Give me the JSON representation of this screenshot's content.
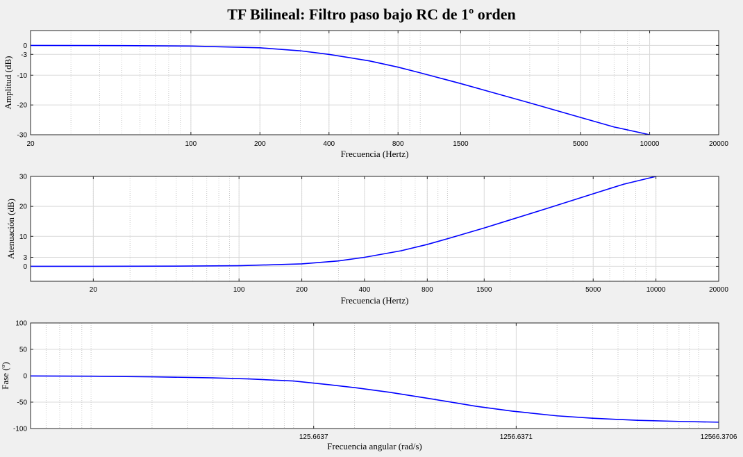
{
  "title": "TF Bilineal: Filtro paso bajo RC de 1º orden",
  "colors": {
    "line": "#0000ff",
    "grid": "#d9d9d9",
    "axes_bg": "#ffffff",
    "figure_bg": "#f0f0f0"
  },
  "chart_data": [
    {
      "type": "line",
      "xscale": "log",
      "xlabel": "Frecuencia (Hertz)",
      "ylabel": "Amplitud (dB)",
      "xlim": [
        20,
        20000
      ],
      "ylim": [
        -30,
        5
      ],
      "xticks": [
        20,
        100,
        200,
        400,
        800,
        1500,
        5000,
        10000,
        20000
      ],
      "xticklabels": [
        "20",
        "100",
        "200",
        "400",
        "800",
        "1500",
        "5000",
        "10000",
        "20000"
      ],
      "yticks": [
        -30,
        -20,
        -10,
        -3,
        0
      ],
      "yticklabels": [
        "-30",
        "-20",
        "-10",
        "-3",
        "0"
      ],
      "grid": true,
      "series": [
        {
          "x": [
            20,
            50,
            100,
            200,
            300,
            400,
            600,
            800,
            1000,
            1500,
            2000,
            3000,
            5000,
            7000,
            10000,
            10500
          ],
          "y": [
            0,
            -0.05,
            -0.2,
            -0.8,
            -1.8,
            -3,
            -5.2,
            -7.3,
            -9.2,
            -12.8,
            -15.5,
            -19.3,
            -24.2,
            -27.4,
            -30,
            -30.4
          ]
        }
      ]
    },
    {
      "type": "line",
      "xscale": "log",
      "xlabel": "Frecuencia (Hertz)",
      "ylabel": "Atenuación (dB)",
      "xlim": [
        10,
        20000
      ],
      "ylim": [
        -5,
        30
      ],
      "xticks": [
        20,
        100,
        200,
        400,
        800,
        1500,
        5000,
        10000,
        20000
      ],
      "xticklabels": [
        "20",
        "100",
        "200",
        "400",
        "800",
        "1500",
        "5000",
        "10000",
        "20000"
      ],
      "yticks": [
        0,
        3,
        10,
        20,
        30
      ],
      "yticklabels": [
        "0",
        "3",
        "10",
        "20",
        "30"
      ],
      "grid": true,
      "series": [
        {
          "x": [
            10,
            20,
            50,
            100,
            200,
            300,
            400,
            600,
            800,
            1000,
            1500,
            2000,
            3000,
            5000,
            7000,
            10000,
            10500
          ],
          "y": [
            0,
            0,
            0.05,
            0.2,
            0.8,
            1.8,
            3,
            5.2,
            7.3,
            9.2,
            12.8,
            15.5,
            19.3,
            24.2,
            27.4,
            30,
            30.4
          ]
        }
      ]
    },
    {
      "type": "line",
      "xscale": "log",
      "xlabel": "Frecuencia angular (rad/s)",
      "ylabel": "Fase (º)",
      "xlim": [
        5.0265,
        12566.3706
      ],
      "ylim": [
        -100,
        100
      ],
      "xticks": [
        125.6637,
        1256.6371,
        12566.3706
      ],
      "xticklabels": [
        "125.6637",
        "1256.6371",
        "12566.3706"
      ],
      "yticks": [
        -100,
        -50,
        0,
        50,
        100
      ],
      "yticklabels": [
        "-100",
        "-50",
        "0",
        "50",
        "100"
      ],
      "grid": true,
      "series": [
        {
          "x": [
            5.0265,
            10,
            20,
            40,
            60,
            100,
            150,
            200,
            300,
            500,
            800,
            1200,
            2000,
            3000,
            5000,
            8000,
            12566.3706
          ],
          "y": [
            -0.4,
            -0.9,
            -2,
            -4,
            -6,
            -10,
            -17,
            -22.5,
            -31.5,
            -45,
            -58,
            -67,
            -76,
            -80.5,
            -84.5,
            -86.5,
            -88
          ]
        }
      ]
    }
  ]
}
